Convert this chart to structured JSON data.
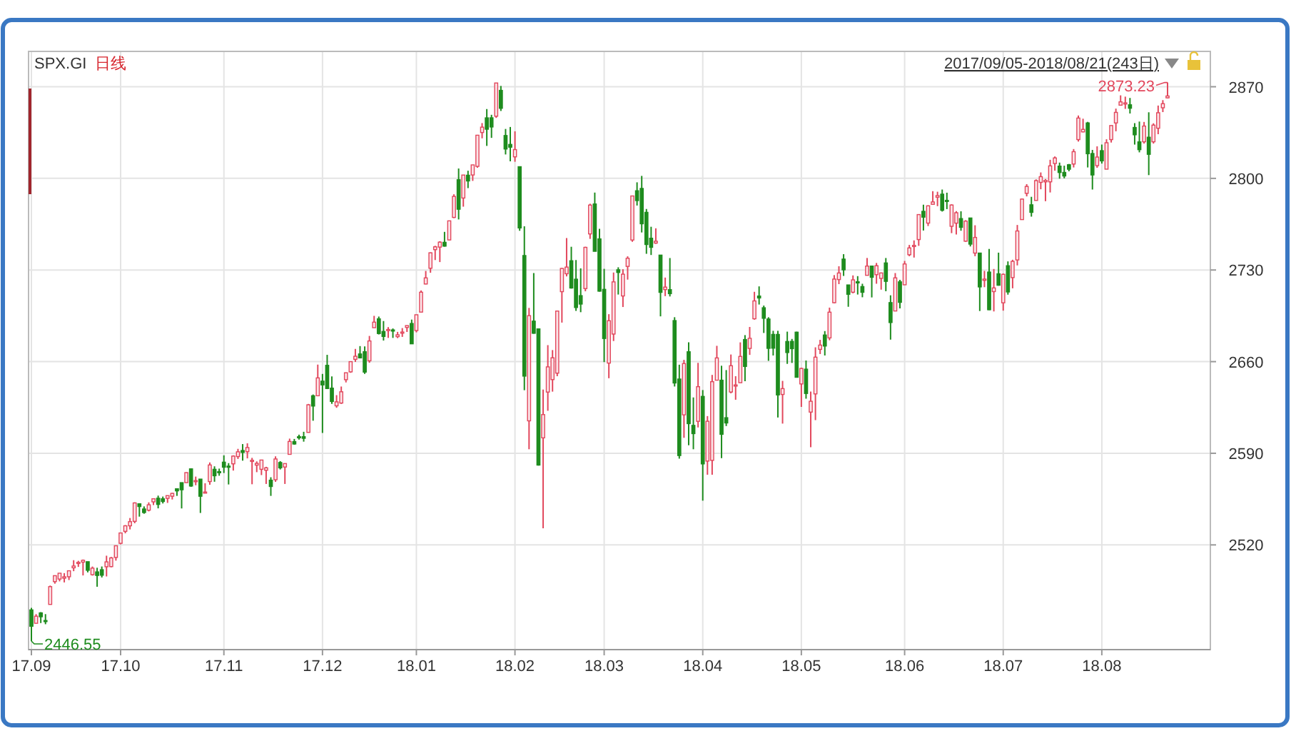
{
  "chart_data": {
    "type": "candlestick",
    "title": "SPX.GI",
    "subtitle": "日线",
    "annotations": [
      "2446.55",
      "2873.23",
      "2017/09/05-2018/08/21(243日)"
    ],
    "grid": true,
    "ylim": [
      2440,
      2897
    ],
    "yticks": [
      2520,
      2590,
      2660,
      2730,
      2800,
      2870
    ],
    "categories": [
      "17.09",
      null,
      null,
      null,
      null,
      null,
      null,
      null,
      null,
      null,
      null,
      null,
      null,
      null,
      null,
      null,
      null,
      null,
      null,
      "17.10",
      null,
      null,
      null,
      null,
      null,
      null,
      null,
      null,
      null,
      null,
      null,
      null,
      null,
      null,
      null,
      null,
      null,
      null,
      null,
      null,
      null,
      "17.11",
      null,
      null,
      null,
      null,
      null,
      null,
      null,
      null,
      null,
      null,
      null,
      null,
      null,
      null,
      null,
      null,
      null,
      null,
      null,
      null,
      "17.12",
      null,
      null,
      null,
      null,
      null,
      null,
      null,
      null,
      null,
      null,
      null,
      null,
      null,
      null,
      null,
      null,
      null,
      null,
      null,
      "18.01",
      null,
      null,
      null,
      null,
      null,
      null,
      null,
      null,
      null,
      null,
      null,
      null,
      null,
      null,
      null,
      null,
      null,
      null,
      null,
      null,
      "18.02",
      null,
      null,
      null,
      null,
      null,
      null,
      null,
      null,
      null,
      null,
      null,
      null,
      null,
      null,
      null,
      null,
      null,
      null,
      "18.03",
      null,
      null,
      null,
      null,
      null,
      null,
      null,
      null,
      null,
      null,
      null,
      null,
      null,
      null,
      null,
      null,
      null,
      null,
      null,
      null,
      "18.04",
      null,
      null,
      null,
      null,
      null,
      null,
      null,
      null,
      null,
      null,
      null,
      null,
      null,
      null,
      null,
      null,
      null,
      null,
      null,
      null,
      "18.05",
      null,
      null,
      null,
      null,
      null,
      null,
      null,
      null,
      null,
      null,
      null,
      null,
      null,
      null,
      null,
      null,
      null,
      null,
      null,
      null,
      null,
      "18.06",
      null,
      null,
      null,
      null,
      null,
      null,
      null,
      null,
      null,
      null,
      null,
      null,
      null,
      null,
      null,
      null,
      null,
      null,
      null,
      null,
      "18.07",
      null,
      null,
      null,
      null,
      null,
      null,
      null,
      null,
      null,
      null,
      null,
      null,
      null,
      null,
      null,
      null,
      null,
      null,
      null,
      null,
      "18.08",
      null,
      null,
      null,
      null,
      null,
      null,
      null,
      null,
      null,
      null,
      null,
      null,
      null,
      null
    ],
    "ohlc": [
      [
        2470.35,
        2471.97,
        2446.55,
        2457.85
      ],
      [
        2460.11,
        2467.11,
        2460.11,
        2465.54
      ],
      [
        2468.06,
        2468.62,
        2460.29,
        2465.1
      ],
      [
        2462.25,
        2467.11,
        2459.4,
        2461.43
      ],
      [
        2474.52,
        2488.95,
        2474.52,
        2488.11
      ],
      [
        2491.94,
        2496.77,
        2490.37,
        2496.48
      ],
      [
        2493.89,
        2498.37,
        2492.14,
        2498.37
      ],
      [
        2494.56,
        2498.43,
        2491.35,
        2495.62
      ],
      [
        2495.67,
        2500.23,
        2493.16,
        2500.23
      ],
      [
        2502.51,
        2508.32,
        2499.92,
        2503.87
      ],
      [
        2506.29,
        2507.84,
        2503.19,
        2506.65
      ],
      [
        2506.84,
        2508.85,
        2496.67,
        2508.24
      ],
      [
        2507.16,
        2507.16,
        2499,
        2500.6
      ],
      [
        2497.26,
        2503.47,
        2496.54,
        2502.22
      ],
      [
        2499.39,
        2502.54,
        2488.03,
        2496.66
      ],
      [
        2501.04,
        2503.51,
        2495.12,
        2496.84
      ],
      [
        2503.3,
        2511.75,
        2495.91,
        2507.04
      ],
      [
        2503.41,
        2510.81,
        2502.93,
        2510.06
      ],
      [
        2510.42,
        2519.44,
        2507.99,
        2519.36
      ],
      [
        2521.2,
        2529.23,
        2520.4,
        2529.12
      ],
      [
        2530.34,
        2535.13,
        2528.85,
        2534.58
      ],
      [
        2534.59,
        2540.53,
        2531.8,
        2537.74
      ],
      [
        2537.97,
        2552.51,
        2536.52,
        2552.07
      ],
      [
        2551.39,
        2551.82,
        2541.6,
        2549.33
      ],
      [
        2547.44,
        2549.41,
        2543.79,
        2544.73
      ],
      [
        2546.51,
        2552.51,
        2545.6,
        2550.64
      ],
      [
        2552.88,
        2555.33,
        2550.43,
        2555.24
      ],
      [
        2555.66,
        2557.65,
        2547.92,
        2550.93
      ],
      [
        2555.21,
        2556.94,
        2551.65,
        2553.17
      ],
      [
        2555.57,
        2557.65,
        2552.09,
        2557.64
      ],
      [
        2557.17,
        2559.71,
        2554.69,
        2559.36
      ],
      [
        2562.87,
        2562.87,
        2557.45,
        2561.26
      ],
      [
        2567.56,
        2567.56,
        2547.85,
        2562.1
      ],
      [
        2567.56,
        2575.44,
        2567.56,
        2575.21
      ],
      [
        2578.08,
        2578.29,
        2564.33,
        2564.98
      ],
      [
        2568.66,
        2572.18,
        2565.58,
        2569.13
      ],
      [
        2570.26,
        2570.26,
        2544.4,
        2557.15
      ],
      [
        2560.08,
        2567.07,
        2559.8,
        2560.4
      ],
      [
        2568.39,
        2582.98,
        2565.94,
        2581.07
      ],
      [
        2577.75,
        2580.03,
        2568.25,
        2572.83
      ],
      [
        2575.99,
        2578.29,
        2572.85,
        2575.26
      ],
      [
        2583.21,
        2588.4,
        2574.92,
        2579.36
      ],
      [
        2580.18,
        2582.47,
        2566.17,
        2579.85
      ],
      [
        2581.93,
        2588.42,
        2576.77,
        2587.84
      ],
      [
        2587.47,
        2593.38,
        2585.66,
        2591.13
      ],
      [
        2592.11,
        2597.02,
        2584.35,
        2590.64
      ],
      [
        2591.26,
        2597.62,
        2586.09,
        2594.38
      ],
      [
        2584,
        2586.5,
        2566.33,
        2584.62
      ],
      [
        2580.95,
        2583.81,
        2575.57,
        2582.3
      ],
      [
        2577.75,
        2585,
        2573.34,
        2584.84
      ],
      [
        2577.02,
        2579.66,
        2566.56,
        2578.87
      ],
      [
        2569.45,
        2571.67,
        2557.45,
        2564.62
      ],
      [
        2569.79,
        2587.66,
        2568.17,
        2585.64
      ],
      [
        2582.94,
        2583.96,
        2577.62,
        2578.85
      ],
      [
        2579.49,
        2582.14,
        2566.56,
        2582.14
      ],
      [
        2589.17,
        2601.19,
        2589.17,
        2599.03
      ],
      [
        2598.91,
        2600.94,
        2596.52,
        2597.08
      ],
      [
        2602.66,
        2604.21,
        2600.45,
        2602.42
      ],
      [
        2602.66,
        2606.41,
        2598.87,
        2601.42
      ],
      [
        2605.94,
        2627.69,
        2605.94,
        2627.04
      ],
      [
        2633.93,
        2634.89,
        2614.86,
        2626.07
      ],
      [
        2633.93,
        2657.74,
        2633.93,
        2647.58
      ],
      [
        2645.1,
        2650.62,
        2605.52,
        2642.22
      ],
      [
        2657.19,
        2665.19,
        2639.03,
        2639.44
      ],
      [
        2639.78,
        2648.72,
        2627.73,
        2629.57
      ],
      [
        2626.24,
        2634.41,
        2624.75,
        2629.27
      ],
      [
        2628.38,
        2640.99,
        2627.69,
        2636.98
      ],
      [
        2646.21,
        2651.65,
        2644.1,
        2651.5
      ],
      [
        2652.19,
        2660.33,
        2651.47,
        2659.99
      ],
      [
        2661.73,
        2669.72,
        2659.78,
        2664.11
      ],
      [
        2665.87,
        2671.88,
        2662.85,
        2662.85
      ],
      [
        2667.59,
        2671.65,
        2650.62,
        2652.01
      ],
      [
        2660.63,
        2679.63,
        2659.14,
        2675.81
      ],
      [
        2685.92,
        2694.97,
        2685.92,
        2690.16
      ],
      [
        2692.71,
        2694.44,
        2680.74,
        2681.47
      ],
      [
        2683.02,
        2691.01,
        2676.11,
        2679.25
      ],
      [
        2684.22,
        2686.38,
        2678.13,
        2684.57
      ],
      [
        2684.22,
        2685.35,
        2678.13,
        2683.34
      ],
      [
        2679.09,
        2682.74,
        2677.96,
        2680.5
      ],
      [
        2682.1,
        2685.64,
        2678.91,
        2682.62
      ],
      [
        2686.1,
        2687.66,
        2682.69,
        2687.54
      ],
      [
        2689.15,
        2692.12,
        2673.61,
        2673.61
      ],
      [
        2683.73,
        2695.89,
        2682.36,
        2695.81
      ],
      [
        2697.85,
        2714.37,
        2697.77,
        2713.06
      ],
      [
        2719.31,
        2729.29,
        2719.07,
        2723.99
      ],
      [
        2731.33,
        2743.45,
        2727.92,
        2743.15
      ],
      [
        2745.55,
        2748.51,
        2737.6,
        2747.71
      ],
      [
        2747.49,
        2752,
        2736.06,
        2751.29
      ],
      [
        2751.15,
        2759.14,
        2747.86,
        2748.23
      ],
      [
        2752.97,
        2767.56,
        2752.78,
        2767.56
      ],
      [
        2770.18,
        2787.85,
        2769.64,
        2786.24
      ],
      [
        2798.96,
        2807.54,
        2768.64,
        2776.42
      ],
      [
        2784.99,
        2802.56,
        2778.38,
        2802.56
      ],
      [
        2802.4,
        2805.83,
        2792.56,
        2798.03
      ],
      [
        2802.6,
        2810.33,
        2798.08,
        2810.3
      ],
      [
        2809.16,
        2833.03,
        2808.12,
        2832.97
      ],
      [
        2835.05,
        2842.24,
        2830.59,
        2839.13
      ],
      [
        2846.24,
        2852.97,
        2824.81,
        2837.54
      ],
      [
        2846.28,
        2848.56,
        2830.94,
        2839.25
      ],
      [
        2847.48,
        2872.87,
        2846.18,
        2872.87
      ],
      [
        2867.23,
        2870.62,
        2851.48,
        2853.53
      ],
      [
        2832.74,
        2837.75,
        2818.27,
        2822.43
      ],
      [
        2825.94,
        2839.26,
        2813.04,
        2823.81
      ],
      [
        2816.45,
        2835.96,
        2812.7,
        2821.98
      ],
      [
        2808.92,
        2808.92,
        2759.97,
        2762.13
      ],
      [
        2741.06,
        2763.39,
        2638.17,
        2648.94
      ],
      [
        2614.78,
        2701.04,
        2593.07,
        2695.14
      ],
      [
        2690.95,
        2727.67,
        2681.33,
        2681.66
      ],
      [
        2685.01,
        2685.27,
        2580.56,
        2581
      ],
      [
        2601.78,
        2638.67,
        2532.69,
        2619.55
      ],
      [
        2636.75,
        2672.61,
        2622.45,
        2656
      ],
      [
        2646.27,
        2668.84,
        2637.08,
        2662.94
      ],
      [
        2651.21,
        2699.01,
        2648.87,
        2698.63
      ],
      [
        2713.46,
        2731.51,
        2689.82,
        2731.2
      ],
      [
        2727.14,
        2754.42,
        2725.11,
        2732.22
      ],
      [
        2737.07,
        2747.75,
        2715.78,
        2716.26
      ],
      [
        2722.99,
        2737.6,
        2698.76,
        2701.33
      ],
      [
        2710.42,
        2731.26,
        2697.77,
        2703.96
      ],
      [
        2715.8,
        2747.76,
        2713.74,
        2747.3
      ],
      [
        2757.57,
        2780.64,
        2753.78,
        2779.6
      ],
      [
        2780.45,
        2789.15,
        2744.22,
        2744.28
      ],
      [
        2753.78,
        2761.52,
        2713.54,
        2713.83
      ],
      [
        2715.22,
        2730.89,
        2659.65,
        2677.67
      ],
      [
        2658.89,
        2696.25,
        2647.32,
        2691.25
      ],
      [
        2681.06,
        2728.09,
        2675.75,
        2720.94
      ],
      [
        2730.18,
        2732.08,
        2711.26,
        2728.12
      ],
      [
        2710.18,
        2730.6,
        2701.74,
        2726.8
      ],
      [
        2732.75,
        2740.45,
        2722.65,
        2738.97
      ],
      [
        2752.91,
        2786.57,
        2751.54,
        2786.57
      ],
      [
        2790.54,
        2796.98,
        2779.26,
        2783.02
      ],
      [
        2792.31,
        2801.9,
        2758.68,
        2765.31
      ],
      [
        2774.06,
        2776.62,
        2742.38,
        2749.48
      ],
      [
        2754.27,
        2763.03,
        2741.47,
        2747.33
      ],
      [
        2750.57,
        2761.85,
        2749.97,
        2752.01
      ],
      [
        2741.38,
        2741.38,
        2694.59,
        2712.92
      ],
      [
        2715.05,
        2724.22,
        2710.05,
        2716.94
      ],
      [
        2714.99,
        2739.14,
        2709.79,
        2711.93
      ],
      [
        2691.36,
        2693.94,
        2641,
        2643.69
      ],
      [
        2646.71,
        2657.67,
        2585.89,
        2588.26
      ],
      [
        2619.35,
        2661.36,
        2601.81,
        2658.55
      ],
      [
        2667.57,
        2674.78,
        2596.12,
        2612.62
      ],
      [
        2611.3,
        2632.65,
        2593.06,
        2605
      ],
      [
        2614.41,
        2659.07,
        2609.72,
        2640.87
      ],
      [
        2633.45,
        2638.3,
        2553.8,
        2581.88
      ],
      [
        2584.04,
        2618.41,
        2573.61,
        2614.45
      ],
      [
        2584.58,
        2649.86,
        2573.61,
        2644.69
      ],
      [
        2645.82,
        2672.08,
        2645.82,
        2662.84
      ],
      [
        2645.82,
        2656.88,
        2586.27,
        2604.47
      ],
      [
        2617.18,
        2653.55,
        2610.79,
        2613.16
      ],
      [
        2636.81,
        2665.45,
        2635.78,
        2656.87
      ],
      [
        2641.71,
        2648.86,
        2630.89,
        2642.19
      ],
      [
        2643.89,
        2674.72,
        2643.89,
        2663.99
      ],
      [
        2676.9,
        2680.26,
        2645.05,
        2656.3
      ],
      [
        2670.1,
        2686.49,
        2665.16,
        2677.84
      ],
      [
        2692.74,
        2713.34,
        2692.05,
        2706.39
      ],
      [
        2710.11,
        2717.49,
        2703.63,
        2708.64
      ],
      [
        2701.16,
        2702.84,
        2681.9,
        2693.13
      ],
      [
        2692.56,
        2693.94,
        2660.61,
        2670.14
      ],
      [
        2680.8,
        2683.55,
        2664.7,
        2670.29
      ],
      [
        2680.8,
        2683.55,
        2617.32,
        2634.56
      ],
      [
        2634.92,
        2645.3,
        2612.67,
        2639.4
      ],
      [
        2675.4,
        2682.92,
        2658.29,
        2666.94
      ],
      [
        2675.47,
        2677.35,
        2659.01,
        2669.91
      ],
      [
        2682.51,
        2682.87,
        2648.04,
        2648.05
      ],
      [
        2642.96,
        2655.27,
        2625.41,
        2654.8
      ],
      [
        2654.24,
        2660.87,
        2631.7,
        2635.67
      ],
      [
        2621.45,
        2637.14,
        2594.62,
        2629.73
      ],
      [
        2635.35,
        2670.93,
        2615.32,
        2663.42
      ],
      [
        2669.36,
        2676.65,
        2665.81,
        2672.63
      ],
      [
        2680.34,
        2683.35,
        2664.7,
        2671.92
      ],
      [
        2678.12,
        2701.27,
        2676.32,
        2697.79
      ],
      [
        2705.02,
        2726.11,
        2704.54,
        2723.07
      ],
      [
        2722.7,
        2732.86,
        2719.2,
        2727.72
      ],
      [
        2738.34,
        2742.1,
        2725.47,
        2730.13
      ],
      [
        2718.59,
        2718.59,
        2701.91,
        2711.45
      ],
      [
        2713.05,
        2725.87,
        2712.17,
        2722.46
      ],
      [
        2721.03,
        2725.32,
        2711.26,
        2720.13
      ],
      [
        2717.35,
        2719.5,
        2709.18,
        2712.97
      ],
      [
        2725.95,
        2739.19,
        2725.95,
        2733.01
      ],
      [
        2733,
        2733.33,
        2709.05,
        2724.44
      ],
      [
        2726.43,
        2735.39,
        2719.51,
        2733.29
      ],
      [
        2723.6,
        2728.0,
        2714.99,
        2727.76
      ],
      [
        2735.39,
        2739.16,
        2713.8,
        2721.33
      ],
      [
        2705.11,
        2710.67,
        2676.81,
        2689.86
      ],
      [
        2698.69,
        2727.67,
        2698.69,
        2724.01
      ],
      [
        2720.98,
        2722.5,
        2700.68,
        2705.27
      ],
      [
        2718.7,
        2736.93,
        2718.7,
        2734.62
      ],
      [
        2741.67,
        2749.16,
        2740.54,
        2746.87
      ],
      [
        2748.46,
        2752.61,
        2739.51,
        2748.8
      ],
      [
        2753.25,
        2772.39,
        2748.46,
        2772.35
      ],
      [
        2774.84,
        2779.9,
        2760.16,
        2770.37
      ],
      [
        2765.84,
        2779.39,
        2763.59,
        2779.03
      ],
      [
        2780.18,
        2790.21,
        2780.17,
        2782
      ],
      [
        2785.6,
        2789.8,
        2778.78,
        2786.85
      ],
      [
        2787.94,
        2791.47,
        2774.65,
        2775.63
      ],
      [
        2783.21,
        2789.06,
        2776.52,
        2782.49
      ],
      [
        2763.39,
        2780.17,
        2758.17,
        2779.66
      ],
      [
        2765.79,
        2774.99,
        2757.12,
        2773.75
      ],
      [
        2769.28,
        2774.86,
        2760,
        2762.59
      ],
      [
        2752.01,
        2768.1,
        2751.56,
        2767.32
      ],
      [
        2769.73,
        2769.73,
        2748,
        2749.76
      ],
      [
        2742.94,
        2764.17,
        2740.54,
        2754.88
      ],
      [
        2742.94,
        2742.94,
        2698.67,
        2717.07
      ],
      [
        2722.12,
        2729.34,
        2716.88,
        2723.06
      ],
      [
        2728.45,
        2746.09,
        2699.38,
        2699.63
      ],
      [
        2713.51,
        2730.79,
        2698.35,
        2716.31
      ],
      [
        2727.13,
        2743.26,
        2718.03,
        2718.37
      ],
      [
        2704.95,
        2727.26,
        2698.95,
        2726.71
      ],
      [
        2733.27,
        2736.58,
        2711.16,
        2713.22
      ],
      [
        2724.19,
        2737.83,
        2716.02,
        2736.61
      ],
      [
        2737.68,
        2764.41,
        2733.52,
        2759.82
      ],
      [
        2768.51,
        2784.65,
        2768.51,
        2784.17
      ],
      [
        2788.56,
        2795.58,
        2786.24,
        2793.84
      ],
      [
        2779.82,
        2785.91,
        2770.77,
        2774.02
      ],
      [
        2783.14,
        2799.22,
        2783.14,
        2798.29
      ],
      [
        2796.93,
        2804.53,
        2791.69,
        2801.31
      ],
      [
        2797.36,
        2799.5,
        2782.57,
        2798.43
      ],
      [
        2797.36,
        2814.19,
        2789.24,
        2809.55
      ],
      [
        2811.35,
        2816.76,
        2805.89,
        2815.62
      ],
      [
        2809.37,
        2812.05,
        2799.77,
        2804.49
      ],
      [
        2804.55,
        2809.7,
        2800.01,
        2801.83
      ],
      [
        2810.43,
        2811.02,
        2805.4,
        2806.98
      ],
      [
        2810.95,
        2822.4,
        2808.34,
        2820.4
      ],
      [
        2829.62,
        2848.03,
        2828.12,
        2846.07
      ],
      [
        2835.49,
        2845.57,
        2835.26,
        2837.44
      ],
      [
        2842.35,
        2843.17,
        2808.34,
        2818.82
      ],
      [
        2819,
        2821.74,
        2791.47,
        2802.6
      ],
      [
        2809.73,
        2824.46,
        2808.06,
        2816.29
      ],
      [
        2821.17,
        2825.83,
        2811.3,
        2813.36
      ],
      [
        2807.03,
        2829.87,
        2807.03,
        2827.22
      ],
      [
        2829.62,
        2840.38,
        2827.37,
        2840.35
      ],
      [
        2842.35,
        2853.29,
        2835.98,
        2850.4
      ],
      [
        2855.92,
        2863.43,
        2855.92,
        2858.45
      ],
      [
        2856.79,
        2862.44,
        2853.09,
        2857.7
      ],
      [
        2856.21,
        2861.44,
        2849.54,
        2853.58
      ],
      [
        2838.9,
        2842.2,
        2825.81,
        2833.28
      ],
      [
        2827.88,
        2843.4,
        2819.88,
        2821.93
      ],
      [
        2827.95,
        2843.11,
        2826.58,
        2839.96
      ],
      [
        2831.44,
        2850.49,
        2802.49,
        2818.37
      ],
      [
        2827.95,
        2842.07,
        2826.58,
        2840.69
      ],
      [
        2838.32,
        2855.63,
        2833.73,
        2850.13
      ],
      [
        2853.93,
        2859.76,
        2850.62,
        2857.05
      ],
      [
        2861.51,
        2873.23,
        2861.32,
        2862.96
      ]
    ]
  }
}
